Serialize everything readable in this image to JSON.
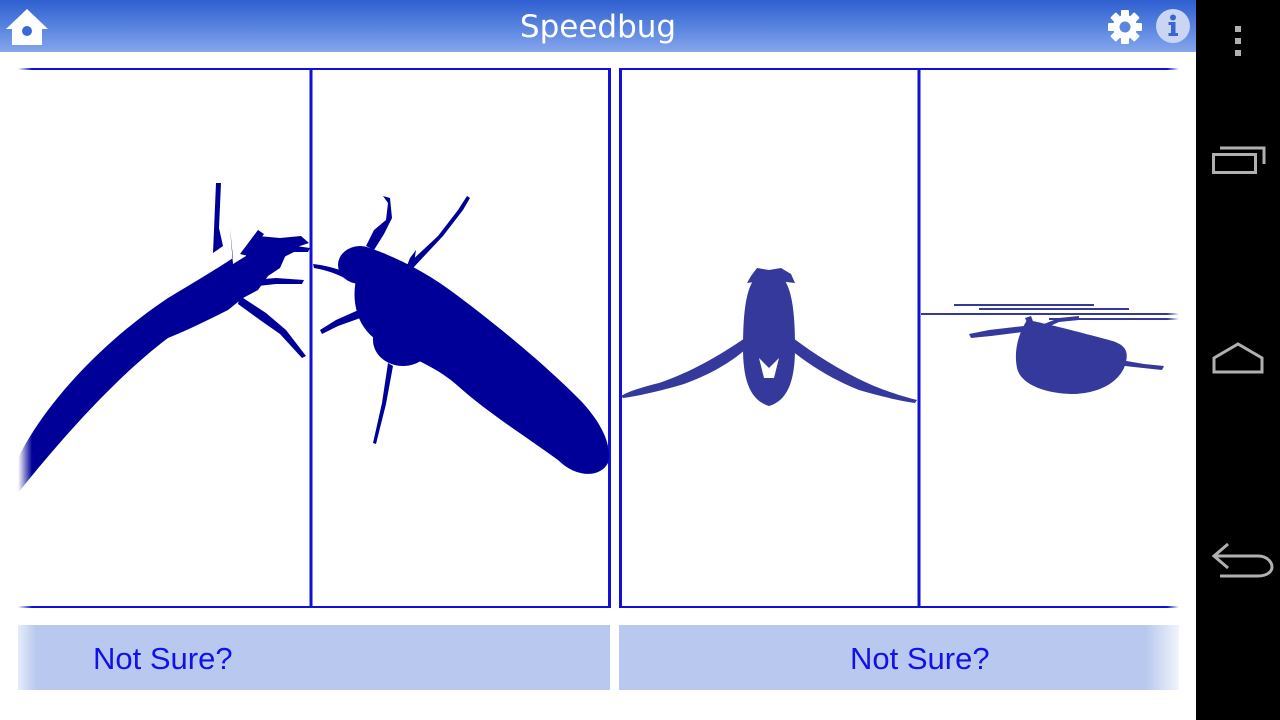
{
  "app": {
    "title": "Speedbug"
  },
  "header": {
    "home_icon": "home-icon",
    "settings_icon": "gear-icon",
    "info_icon": "info-icon"
  },
  "comparisons": [
    {
      "not_sure_label": "Not Sure?"
    },
    {
      "not_sure_label": "Not Sure?"
    }
  ],
  "system_nav": {
    "overflow_icon": "overflow-menu-icon",
    "recents_icon": "recent-apps-icon",
    "home_icon": "home-outline-icon",
    "back_icon": "back-arrow-icon"
  },
  "colors": {
    "appbar_top": "#2f5fd0",
    "appbar_bottom": "#86a6ec",
    "frame_blue": "#1010d8",
    "silhouette_dark": "#000099",
    "silhouette_medium": "#35399c",
    "button_bg": "#b8c8ee",
    "button_text": "#1212e8"
  }
}
